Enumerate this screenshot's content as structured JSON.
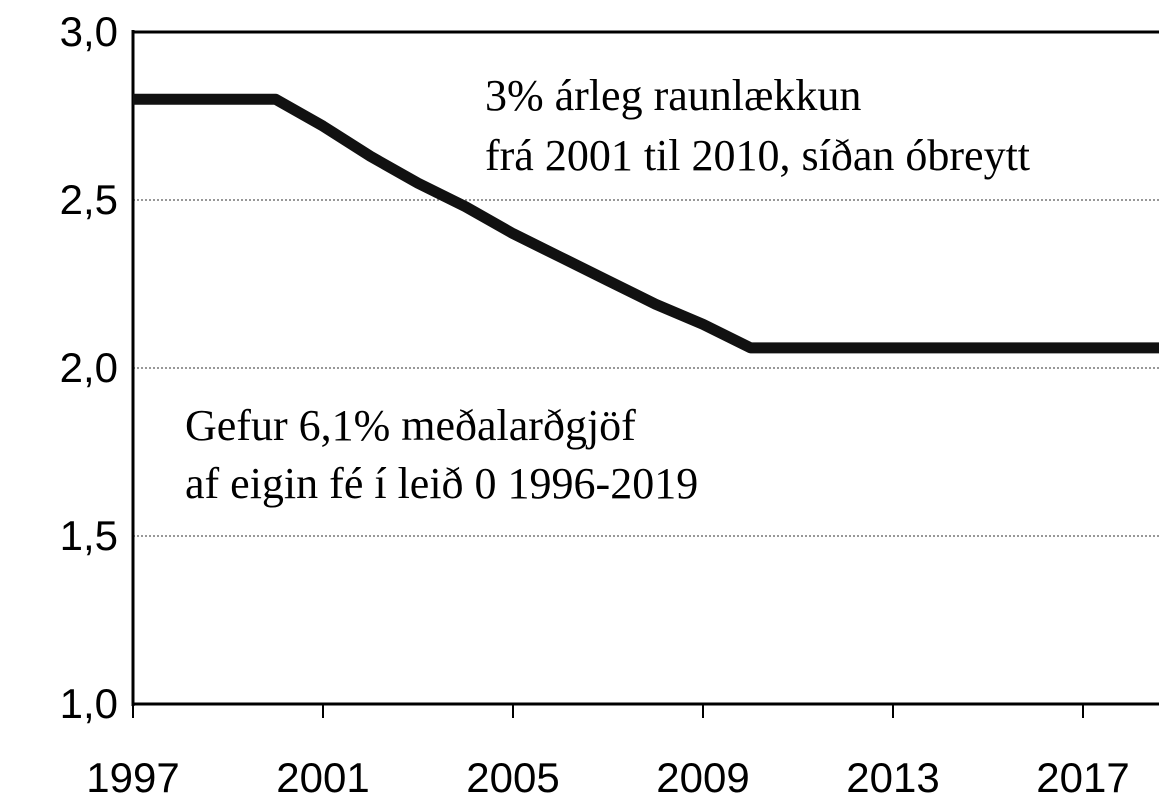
{
  "chart_data": {
    "type": "line",
    "x": [
      1997,
      1998,
      1999,
      2000,
      2001,
      2002,
      2003,
      2004,
      2005,
      2006,
      2007,
      2008,
      2009,
      2010,
      2011,
      2012,
      2013,
      2014,
      2015,
      2016,
      2017,
      2018,
      2019
    ],
    "values": [
      2.8,
      2.8,
      2.8,
      2.8,
      2.72,
      2.63,
      2.55,
      2.48,
      2.4,
      2.33,
      2.26,
      2.19,
      2.13,
      2.06,
      2.06,
      2.06,
      2.06,
      2.06,
      2.06,
      2.06,
      2.06,
      2.06,
      2.06
    ],
    "color": "#111111",
    "xlim": [
      1997,
      2018.6
    ],
    "xticks": [
      1997,
      2001,
      2005,
      2009,
      2013,
      2017
    ],
    "ylim": [
      1.0,
      3.0
    ],
    "yticks": [
      {
        "value": 1.0,
        "label": "1,0"
      },
      {
        "value": 1.5,
        "label": "1,5"
      },
      {
        "value": 2.0,
        "label": "2,0"
      },
      {
        "value": 2.5,
        "label": "2,5"
      },
      {
        "value": 3.0,
        "label": "3,0"
      }
    ],
    "grid": true,
    "annotations": [
      "3% árleg raunlækkun",
      "frá 2001 til 2010, síðan óbreytt",
      "Gefur 6,1% meðalarðgjöf",
      "af eigin fé í leið 0 1996-2019"
    ]
  }
}
